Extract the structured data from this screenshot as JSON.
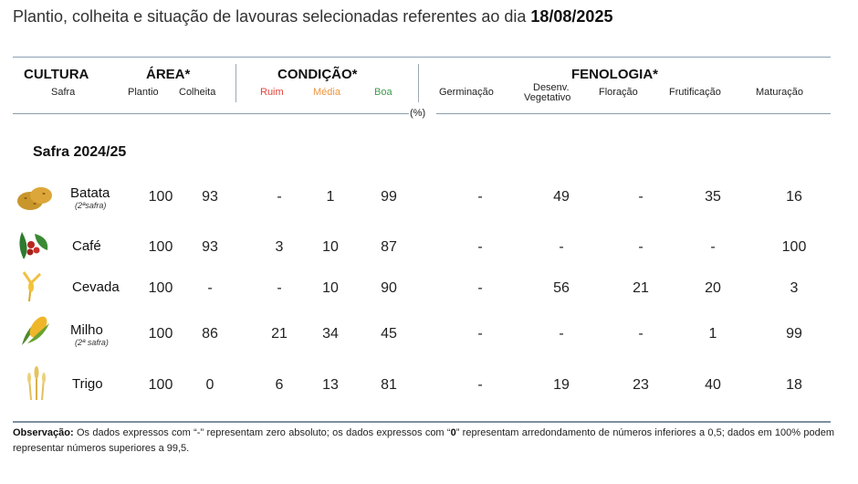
{
  "title_prefix": "Plantio, colheita e situação de lavouras selecionadas referentes ao dia ",
  "title_date": "18/08/2025",
  "headers": {
    "cultura": "CULTURA",
    "safra": "Safra",
    "area": "ÁREA*",
    "plantio": "Plantio",
    "colheita": "Colheita",
    "condicao": "CONDIÇÃO*",
    "ruim": "Ruim",
    "media": "Média",
    "boa": "Boa",
    "fenologia": "FENOLOGIA*",
    "germinacao": "Germinação",
    "desenv1": "Desenv.",
    "desenv2": "Vegetativo",
    "floracao": "Floração",
    "frutificacao": "Frutificação",
    "maturacao": "Maturação",
    "unit": "(%)"
  },
  "section": "Safra 2024/25",
  "rows": [
    {
      "crop": "Batata",
      "safra": "(2ªsafra)",
      "icon": "potato-icon",
      "plantio": "100",
      "colheita": "93",
      "ruim": "-",
      "media": "1",
      "boa": "99",
      "germinacao": "-",
      "desenv": "49",
      "floracao": "-",
      "frutificacao": "35",
      "maturacao": "16"
    },
    {
      "crop": "Café",
      "safra": "",
      "icon": "coffee-icon",
      "plantio": "100",
      "colheita": "93",
      "ruim": "3",
      "media": "10",
      "boa": "87",
      "germinacao": "-",
      "desenv": "-",
      "floracao": "-",
      "frutificacao": "-",
      "maturacao": "100"
    },
    {
      "crop": "Cevada",
      "safra": "",
      "icon": "barley-icon",
      "plantio": "100",
      "colheita": "-",
      "ruim": "-",
      "media": "10",
      "boa": "90",
      "germinacao": "-",
      "desenv": "56",
      "floracao": "21",
      "frutificacao": "20",
      "maturacao": "3"
    },
    {
      "crop": "Milho",
      "safra": "(2ª safra)",
      "icon": "corn-icon",
      "plantio": "100",
      "colheita": "86",
      "ruim": "21",
      "media": "34",
      "boa": "45",
      "germinacao": "-",
      "desenv": "-",
      "floracao": "-",
      "frutificacao": "1",
      "maturacao": "99"
    },
    {
      "crop": "Trigo",
      "safra": "",
      "icon": "wheat-icon",
      "plantio": "100",
      "colheita": "0",
      "ruim": "6",
      "media": "13",
      "boa": "81",
      "germinacao": "-",
      "desenv": "19",
      "floracao": "23",
      "frutificacao": "40",
      "maturacao": "18"
    }
  ],
  "observation": {
    "label": "Observação:",
    "text1": " Os dados expressos com “-” representam zero absoluto; os dados expressos com “",
    "zero": "0",
    "text2": "” representam arredondamento de números inferiores a 0,5; dados em 100% podem representar números superiores a 99,5."
  }
}
